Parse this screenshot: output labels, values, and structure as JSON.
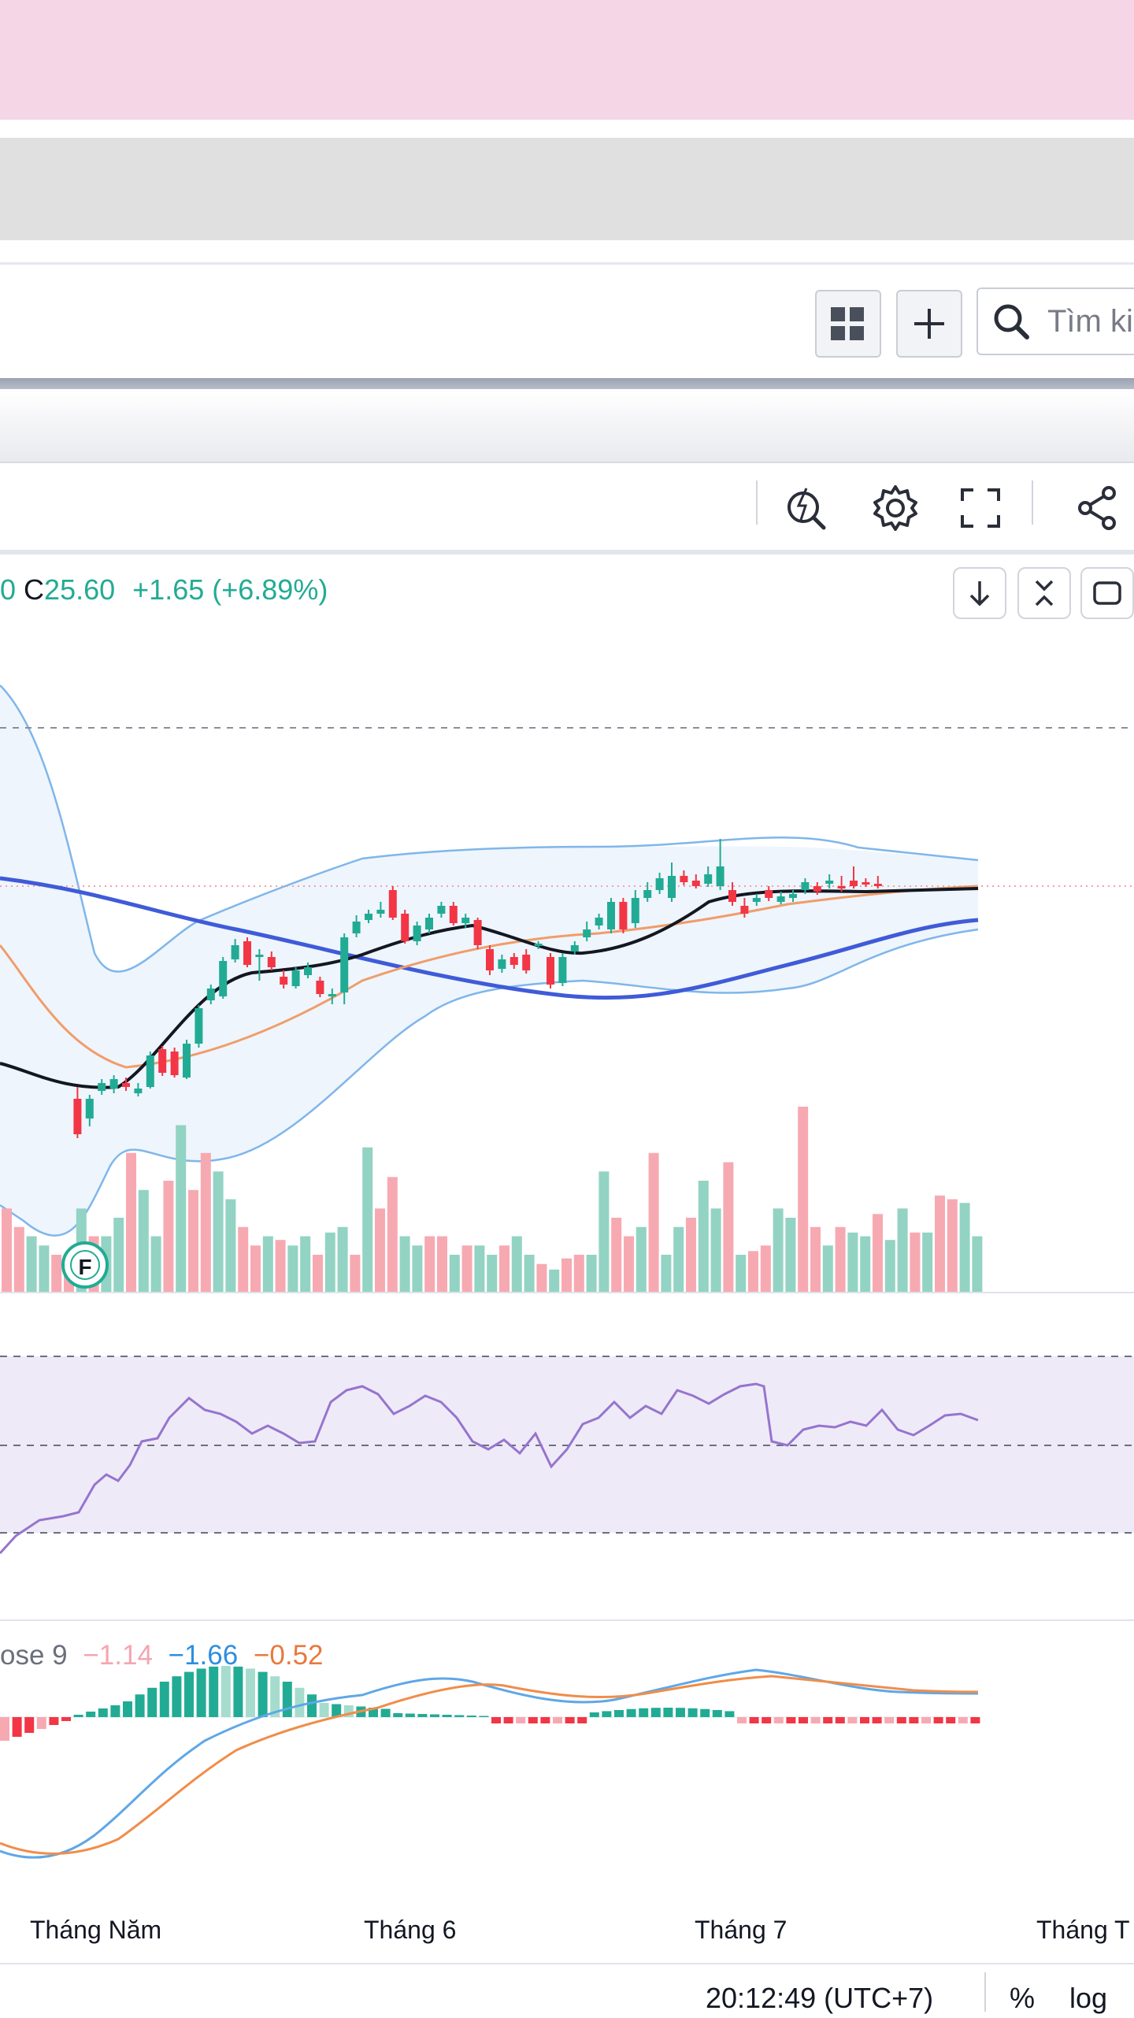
{
  "toolbar": {
    "search_placeholder": "Tìm ki",
    "grid_icon": "grid-icon",
    "plus_icon": "plus-icon",
    "search_icon": "search-icon"
  },
  "chart_toolbar": {
    "icons": [
      "quick-search-icon",
      "gear-icon",
      "fullscreen-icon",
      "share-icon"
    ]
  },
  "legend": {
    "prefix": "0",
    "close_label": "C",
    "close_value": "25.60",
    "change": "+1.65 (+6.89%)"
  },
  "chart_controls": [
    "arrow-down-icon",
    "collapse-icon",
    "maximize-icon"
  ],
  "macd": {
    "label": "ose 9",
    "hist": "−1.14",
    "macd": "−1.66",
    "signal": "−0.52"
  },
  "time_axis": [
    "Tháng Năm",
    "Tháng 6",
    "Tháng 7",
    "Tháng T"
  ],
  "bottom": {
    "time": "20:12:49 (UTC+7)",
    "percent": "%",
    "log": "log"
  },
  "earnings_marker": "F",
  "colors": {
    "up": "#22ab94",
    "down": "#f23645",
    "up_volume": "#93d3c3",
    "down_volume": "#f7a9b2",
    "band_fill": "#eef5fc",
    "rsi_fill": "#efeaf8",
    "rsi_line": "#9575cd",
    "macd_line": "#5ea7e6",
    "signal_line": "#f08d4a",
    "ma_black": "#131722",
    "ma_orange": "#f09d6b",
    "ma_blue": "#3f5bd8"
  },
  "chart_data": {
    "type": "candlestick",
    "ohlc": [],
    "volume_levels": [
      0.45,
      0.35,
      0.3,
      0.25,
      0.2,
      0.2,
      0.45,
      0.3,
      0.3,
      0.4,
      0.75,
      0.55,
      0.3,
      0.6,
      0.9,
      0.55,
      0.75,
      0.65,
      0.5,
      0.35,
      0.25,
      0.3,
      0.28,
      0.25,
      0.3,
      0.2,
      0.32,
      0.35,
      0.2,
      0.78,
      0.45,
      0.62,
      0.3,
      0.25,
      0.3,
      0.3,
      0.2,
      0.25,
      0.25,
      0.2,
      0.25,
      0.3,
      0.2,
      0.15,
      0.12,
      0.18,
      0.2,
      0.2,
      0.65,
      0.4,
      0.3,
      0.35,
      0.75,
      0.2,
      0.35,
      0.4,
      0.6,
      0.45,
      0.7,
      0.2,
      0.22,
      0.25,
      0.45,
      0.4,
      1.0,
      0.35,
      0.25,
      0.35,
      0.32,
      0.3,
      0.42,
      0.28,
      0.45,
      0.32,
      0.32,
      0.52,
      0.5,
      0.48,
      0.3
    ]
  }
}
